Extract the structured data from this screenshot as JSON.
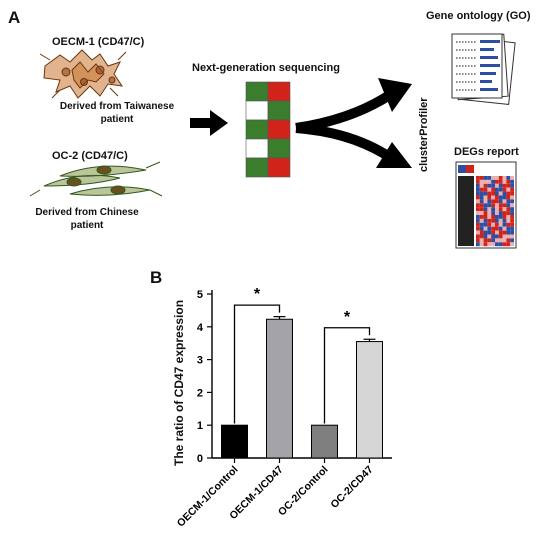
{
  "panelA": {
    "letter": "A",
    "cell1": {
      "title": "OECM-1 (CD47/C)",
      "origin": "Derived from Taiwanese patient"
    },
    "cell2": {
      "title": "OC-2 (CD47/C)",
      "origin": "Derived from Chinese patient"
    },
    "ngs_label": "Next-generation sequencing",
    "tool_label": "clusterProfiler",
    "go_label": "Gene ontology (GO)",
    "degs_label": "DEGs report",
    "colors": {
      "green": "#3a7d2c",
      "red": "#d2231b",
      "cell_fill": "#c8772f",
      "cell2_fill": "#7a6a2a",
      "go_bar": "#2c4fa3"
    }
  },
  "panelB": {
    "letter": "B",
    "significance": [
      "*",
      "*"
    ]
  },
  "chart_data": {
    "type": "bar",
    "categories": [
      "OECM-1/Control",
      "OECM-1/CD47",
      "OC-2/Control",
      "OC-2/CD47"
    ],
    "values": [
      1,
      4.23,
      1,
      3.55
    ],
    "errors": [
      0,
      0.08,
      0,
      0.07
    ],
    "bar_colors": [
      "#000000",
      "#a3a3a8",
      "#7f7f7f",
      "#d6d6d6"
    ],
    "ylabel": "The ratio of CD47 expression",
    "xlabel": "",
    "ylim": [
      0,
      5
    ],
    "yticks": [
      "0",
      "1",
      "2",
      "3",
      "4",
      "5"
    ],
    "grid": false
  }
}
